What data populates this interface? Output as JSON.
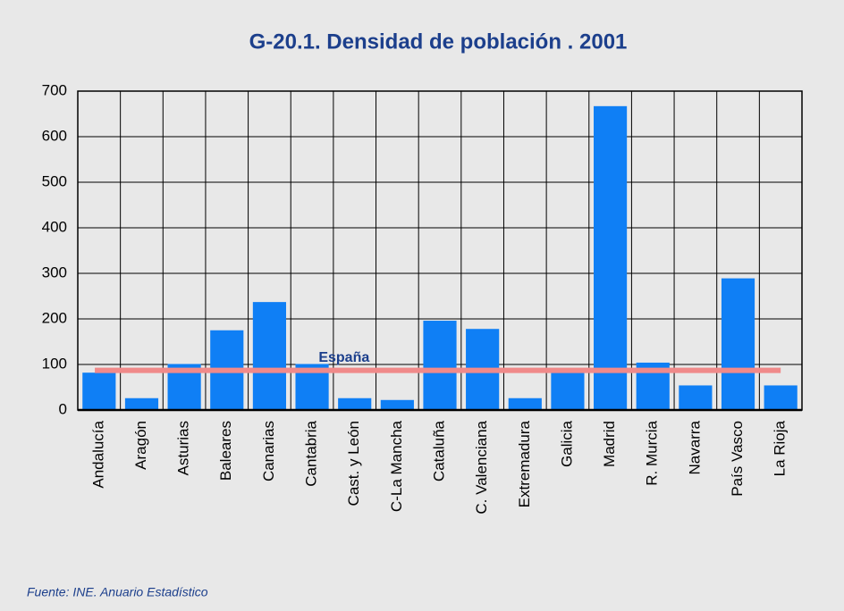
{
  "chart_data": {
    "type": "bar",
    "title": "G-20.1. Densidad de población . 2001",
    "categories": [
      "Andalucía",
      "Aragón",
      "Asturias",
      "Baleares",
      "Canarias",
      "Cantabria",
      "Cast. y León",
      "C-La Mancha",
      "Cataluña",
      "C. Valenciana",
      "Extremadura",
      "Galicia",
      "Madrid",
      "R. Murcia",
      "Navarra",
      "País Vasco",
      "La Rioja"
    ],
    "values": [
      82,
      26,
      101,
      175,
      237,
      101,
      26,
      22,
      196,
      178,
      26,
      92,
      667,
      104,
      54,
      289,
      54
    ],
    "color": "#0f7ff5",
    "ylim": [
      0,
      700
    ],
    "yticks": [
      0,
      100,
      200,
      300,
      400,
      500,
      600,
      700
    ],
    "grid": true,
    "reference": {
      "label": "España",
      "value": 87,
      "color": "#f08a8a"
    },
    "source": "Fuente: INE. Anuario Estadístico"
  }
}
